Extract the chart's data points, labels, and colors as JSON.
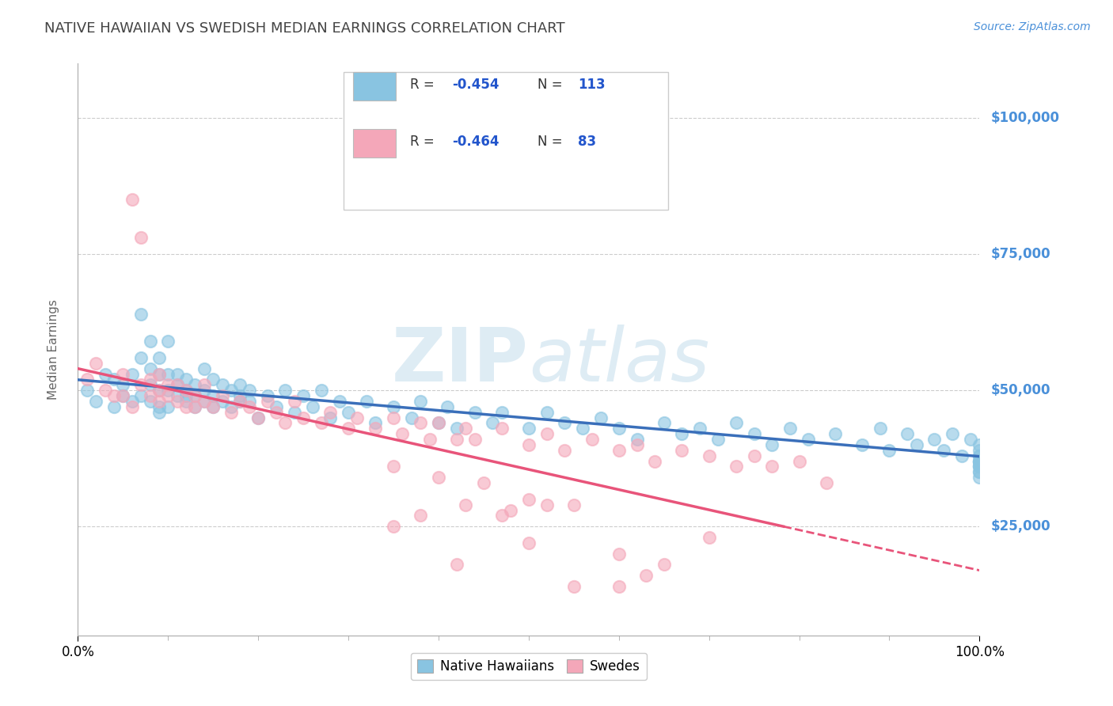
{
  "title": "NATIVE HAWAIIAN VS SWEDISH MEDIAN EARNINGS CORRELATION CHART",
  "source": "Source: ZipAtlas.com",
  "ylabel": "Median Earnings",
  "x_tick_labels": [
    "0.0%",
    "100.0%"
  ],
  "y_tick_labels": [
    "$25,000",
    "$50,000",
    "$75,000",
    "$100,000"
  ],
  "y_tick_values": [
    25000,
    50000,
    75000,
    100000
  ],
  "xlim": [
    0.0,
    1.0
  ],
  "ylim": [
    5000,
    110000
  ],
  "r_hawaiian": -0.454,
  "n_hawaiian": 113,
  "r_swedish": -0.464,
  "n_swedish": 83,
  "color_hawaiian": "#89c4e1",
  "color_swedish": "#f4a7b9",
  "color_hawaiian_line": "#3a6fba",
  "color_swedish_line": "#e8547a",
  "background_color": "#ffffff",
  "grid_color": "#cccccc",
  "title_color": "#444444",
  "source_color": "#4a90d9",
  "legend_blue_color": "#2255cc",
  "watermark_color": "#d0e4f0",
  "hawaiian_x": [
    0.01,
    0.02,
    0.03,
    0.04,
    0.04,
    0.05,
    0.05,
    0.06,
    0.06,
    0.07,
    0.07,
    0.07,
    0.08,
    0.08,
    0.08,
    0.08,
    0.09,
    0.09,
    0.09,
    0.09,
    0.09,
    0.1,
    0.1,
    0.1,
    0.1,
    0.11,
    0.11,
    0.11,
    0.12,
    0.12,
    0.12,
    0.12,
    0.13,
    0.13,
    0.13,
    0.14,
    0.14,
    0.14,
    0.15,
    0.15,
    0.15,
    0.16,
    0.16,
    0.17,
    0.17,
    0.18,
    0.18,
    0.18,
    0.19,
    0.19,
    0.2,
    0.21,
    0.22,
    0.23,
    0.24,
    0.25,
    0.26,
    0.27,
    0.28,
    0.29,
    0.3,
    0.32,
    0.33,
    0.35,
    0.37,
    0.38,
    0.4,
    0.41,
    0.42,
    0.44,
    0.46,
    0.47,
    0.5,
    0.52,
    0.54,
    0.56,
    0.58,
    0.6,
    0.62,
    0.65,
    0.67,
    0.69,
    0.71,
    0.73,
    0.75,
    0.77,
    0.79,
    0.81,
    0.84,
    0.87,
    0.89,
    0.9,
    0.92,
    0.93,
    0.95,
    0.96,
    0.97,
    0.98,
    0.99,
    1.0,
    1.0,
    1.0,
    1.0,
    1.0,
    1.0,
    1.0,
    1.0,
    1.0,
    1.0,
    1.0,
    1.0,
    1.0,
    1.0
  ],
  "hawaiian_y": [
    50000,
    48000,
    53000,
    47000,
    52000,
    49000,
    51000,
    48000,
    53000,
    64000,
    56000,
    49000,
    59000,
    48000,
    51000,
    54000,
    50000,
    53000,
    47000,
    56000,
    46000,
    53000,
    50000,
    47000,
    59000,
    51000,
    53000,
    49000,
    49000,
    52000,
    48000,
    50000,
    51000,
    49000,
    47000,
    54000,
    50000,
    48000,
    49000,
    52000,
    47000,
    51000,
    48000,
    50000,
    47000,
    48000,
    51000,
    49000,
    48000,
    50000,
    45000,
    49000,
    47000,
    50000,
    46000,
    49000,
    47000,
    50000,
    45000,
    48000,
    46000,
    48000,
    44000,
    47000,
    45000,
    48000,
    44000,
    47000,
    43000,
    46000,
    44000,
    46000,
    43000,
    46000,
    44000,
    43000,
    45000,
    43000,
    41000,
    44000,
    42000,
    43000,
    41000,
    44000,
    42000,
    40000,
    43000,
    41000,
    42000,
    40000,
    43000,
    39000,
    42000,
    40000,
    41000,
    39000,
    42000,
    38000,
    41000,
    37000,
    39000,
    38000,
    40000,
    37000,
    38000,
    36000,
    37000,
    35000,
    36000,
    35000,
    37000,
    34000,
    36000
  ],
  "swedish_x": [
    0.01,
    0.02,
    0.03,
    0.04,
    0.05,
    0.05,
    0.06,
    0.06,
    0.07,
    0.07,
    0.08,
    0.08,
    0.09,
    0.09,
    0.09,
    0.1,
    0.1,
    0.11,
    0.11,
    0.12,
    0.12,
    0.13,
    0.13,
    0.14,
    0.14,
    0.15,
    0.16,
    0.17,
    0.18,
    0.19,
    0.2,
    0.21,
    0.22,
    0.23,
    0.24,
    0.25,
    0.27,
    0.28,
    0.3,
    0.31,
    0.33,
    0.35,
    0.36,
    0.38,
    0.39,
    0.4,
    0.42,
    0.43,
    0.44,
    0.47,
    0.5,
    0.52,
    0.54,
    0.57,
    0.6,
    0.62,
    0.64,
    0.67,
    0.7,
    0.73,
    0.75,
    0.77,
    0.8,
    0.83,
    0.35,
    0.4,
    0.45,
    0.5,
    0.55,
    0.6,
    0.63,
    0.42,
    0.5,
    0.35,
    0.47,
    0.52,
    0.38,
    0.43,
    0.48,
    0.55,
    0.6,
    0.65,
    0.7
  ],
  "swedish_y": [
    52000,
    55000,
    50000,
    49000,
    49000,
    53000,
    85000,
    47000,
    51000,
    78000,
    49000,
    52000,
    48000,
    50000,
    53000,
    49000,
    51000,
    48000,
    51000,
    47000,
    50000,
    49000,
    47000,
    51000,
    48000,
    47000,
    49000,
    46000,
    48000,
    47000,
    45000,
    48000,
    46000,
    44000,
    48000,
    45000,
    44000,
    46000,
    43000,
    45000,
    43000,
    45000,
    42000,
    44000,
    41000,
    44000,
    41000,
    43000,
    41000,
    43000,
    40000,
    42000,
    39000,
    41000,
    39000,
    40000,
    37000,
    39000,
    38000,
    36000,
    38000,
    36000,
    37000,
    33000,
    36000,
    34000,
    33000,
    30000,
    29000,
    14000,
    16000,
    18000,
    22000,
    25000,
    27000,
    29000,
    27000,
    29000,
    28000,
    14000,
    20000,
    18000,
    23000
  ]
}
